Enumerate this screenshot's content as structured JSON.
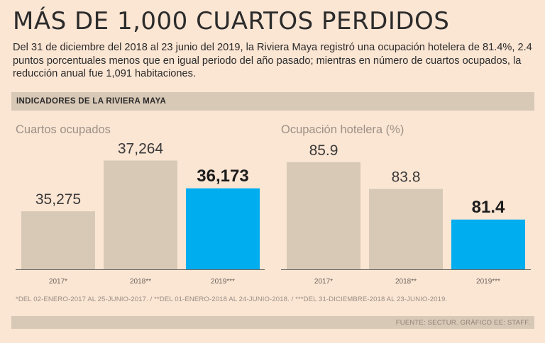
{
  "title": "MÁS DE 1,000 CUARTOS PERDIDOS",
  "subtitle": "Del 31 de diciembre del 2018 al 23 junio del 2019, la Riviera Maya registró una ocupación hotelera de 81.4%, 2.4 puntos porcentuales menos que en igual periodo del año pasado; mientras en número de cuartos ocupados, la reducción anual fue 1,091 habitaciones.",
  "section_label": "INDICADORES DE LA RIVIERA MAYA",
  "footnote": "*DEL 02-ENERO-2017 AL 25-JUNIO-2017. / **DEL 01-ENERO-2018 AL 24-JUNIO-2018. / ***DEL 31-DICIEMBRE-2018 AL 23-JUNIO-2019.",
  "source": "FUENTE: SECTUR. GRÁFICO EE: STAFF.",
  "colors": {
    "bar_default": "#d8c9b7",
    "bar_highlight": "#00adef",
    "axis": "#6e6a66"
  },
  "chart_data": [
    {
      "type": "bar",
      "title": "Cuartos ocupados",
      "categories": [
        "2017*",
        "2018**",
        "2019***"
      ],
      "values": [
        35275,
        37264,
        36173
      ],
      "value_labels": [
        "35,275",
        "37,264",
        "36,173"
      ],
      "highlight_index": 2,
      "ylim": [
        33000,
        38000
      ]
    },
    {
      "type": "bar",
      "title": "Ocupación hotelera (%)",
      "categories": [
        "2017*",
        "2018**",
        "2019***"
      ],
      "values": [
        85.9,
        83.8,
        81.4
      ],
      "value_labels": [
        "85.9",
        "83.8",
        "81.4"
      ],
      "highlight_index": 2,
      "ylim": [
        77.5,
        87.5
      ]
    }
  ]
}
